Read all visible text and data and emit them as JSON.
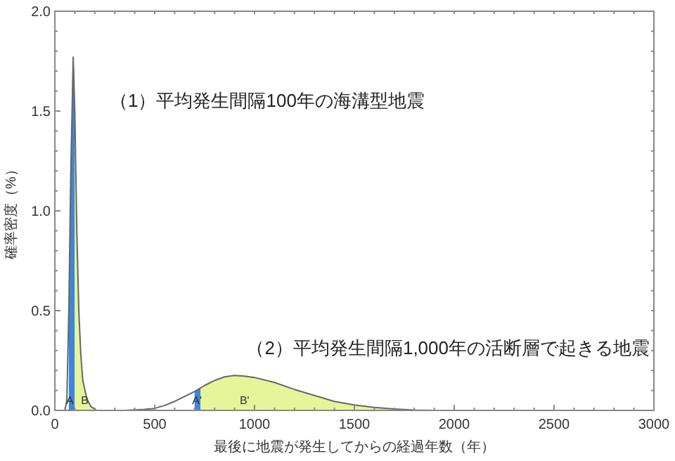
{
  "chart_data": {
    "type": "line",
    "xlabel": "最後に地震が発生してからの経過年数（年）",
    "ylabel": "確率密度（%）",
    "xlim": [
      0,
      3000
    ],
    "xticks": [
      0,
      500,
      1000,
      1500,
      2000,
      2500,
      3000
    ],
    "ylim": [
      0,
      2
    ],
    "yticks": [
      {
        "value": 0,
        "label": "0.0"
      },
      {
        "value": 0.5,
        "label": "0.5"
      },
      {
        "value": 1,
        "label": "1.0"
      },
      {
        "value": 1.5,
        "label": "1.5"
      },
      {
        "value": 2,
        "label": "2.0"
      }
    ],
    "grid": false,
    "series": [
      {
        "type": "area",
        "color": "#3f86d8",
        "x": [
          70,
          80,
          92,
          100
        ],
        "values": [
          0.5,
          1.2,
          1.77,
          1.5
        ]
      },
      {
        "type": "area",
        "color": "#e6f59a",
        "x": [
          100,
          110,
          120,
          130,
          140,
          160,
          180,
          210
        ],
        "values": [
          1.5,
          0.9,
          0.5,
          0.28,
          0.15,
          0.06,
          0.02,
          0
        ]
      },
      {
        "type": "area",
        "color": "#3f86d8",
        "x": [
          700,
          730
        ],
        "values": [
          0.095,
          0.112
        ]
      },
      {
        "type": "area",
        "color": "#e6f59a",
        "x": [
          730,
          750,
          800,
          850,
          900,
          950,
          1000,
          1100,
          1200,
          1300,
          1400,
          1500,
          1600,
          1700,
          1800,
          1900
        ],
        "values": [
          0.112,
          0.125,
          0.15,
          0.168,
          0.175,
          0.172,
          0.165,
          0.14,
          0.105,
          0.075,
          0.045,
          0.027,
          0.015,
          0.007,
          0.002,
          0
        ]
      },
      {
        "color": "#666666",
        "x": [
          50,
          60,
          70,
          80,
          92,
          100,
          110,
          120,
          130,
          140,
          160,
          180,
          210
        ],
        "values": [
          0,
          0.05,
          0.5,
          1.2,
          1.77,
          1.5,
          0.9,
          0.5,
          0.28,
          0.15,
          0.06,
          0.02,
          0
        ]
      },
      {
        "color": "#666666",
        "x": [
          350,
          450,
          500,
          550,
          600,
          650,
          700,
          750,
          800,
          850,
          900,
          950,
          1000,
          1100,
          1200,
          1300,
          1400,
          1500,
          1600,
          1700,
          1800,
          1900
        ],
        "values": [
          0,
          0.005,
          0.01,
          0.025,
          0.045,
          0.07,
          0.095,
          0.125,
          0.15,
          0.168,
          0.175,
          0.172,
          0.165,
          0.14,
          0.105,
          0.075,
          0.045,
          0.027,
          0.015,
          0.007,
          0.002,
          0
        ]
      }
    ],
    "annotations": [
      "（1）平均発生間隔100年の海溝型地震",
      "（2）平均発生間隔1,000年の活断層で起きる地震",
      {
        "text": "A",
        "x": 75,
        "y": 0.03
      },
      {
        "text": "B",
        "x": 150,
        "y": 0.03
      },
      {
        "text": "A'",
        "x": 712,
        "y": 0.03
      },
      {
        "text": "B'",
        "x": 950,
        "y": 0.03
      }
    ]
  }
}
